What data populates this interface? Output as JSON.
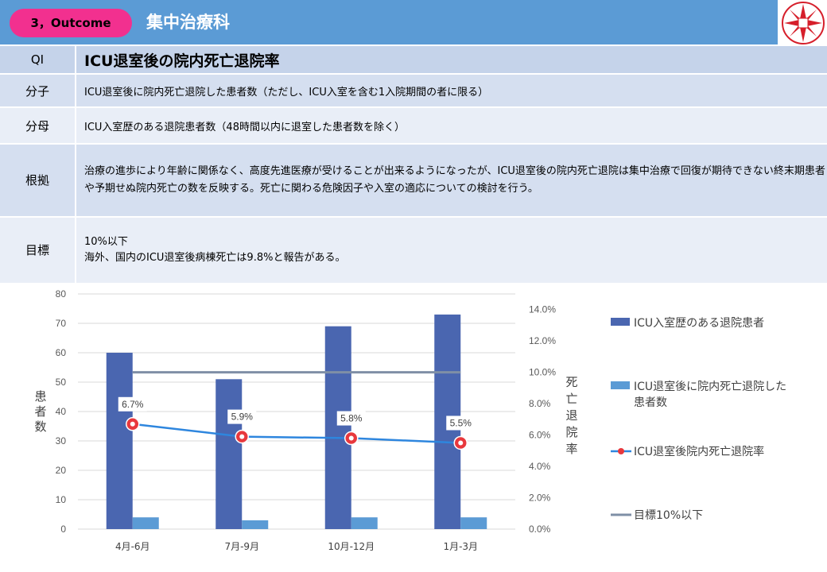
{
  "header": {
    "badge": "3，Outcome",
    "department": "集中治療科"
  },
  "table": {
    "rows": [
      {
        "key": "QI",
        "value": "ICU退室後の院内死亡退院率"
      },
      {
        "key": "分子",
        "value": "ICU退室後に院内死亡退院した患者数（ただし、ICU入室を含む1入院期間の者に限る）"
      },
      {
        "key": "分母",
        "value": "ICU入室歴のある退院患者数（48時間以内に退室した患者数を除く）"
      },
      {
        "key": "根拠",
        "value": "治療の進歩により年齢に関係なく、高度先進医療が受けることが出来るようになったが、ICU退室後の院内死亡退院は集中治療で回復が期待できない終末期患者や予期せぬ院内死亡の数を反映する。死亡に関わる危険因子や入室の適応についての検討を行う。"
      },
      {
        "key": "目標",
        "value_line1": "10%以下",
        "value_line2": "海外、国内のICU退室後病棟死亡は9.8%と報告がある。"
      }
    ]
  },
  "chart_data": {
    "type": "bar",
    "categories": [
      "4月-6月",
      "7月-9月",
      "10月-12月",
      "1月-3月"
    ],
    "series": [
      {
        "name": "ICU入室歴のある退院患者",
        "kind": "bar",
        "axis": "left",
        "color": "#4a66b0",
        "values": [
          60,
          51,
          69,
          73
        ]
      },
      {
        "name": "ICU退室後に院内死亡退院した患者数",
        "kind": "bar",
        "axis": "left",
        "color": "#5b9bd5",
        "values": [
          4,
          3,
          4,
          4
        ]
      },
      {
        "name": "ICU退室後院内死亡退院率",
        "kind": "line",
        "axis": "right",
        "color": "#2e86de",
        "values": [
          6.7,
          5.9,
          5.8,
          5.5
        ],
        "labels": [
          "6.7%",
          "5.9%",
          "5.8%",
          "5.5%"
        ]
      },
      {
        "name": "目標10%以下",
        "kind": "line",
        "axis": "right",
        "color": "#7f8fa6",
        "values": [
          10,
          10,
          10,
          10
        ]
      }
    ],
    "ylabel": "患者数",
    "y2label": "死亡退院率",
    "ylim": [
      0,
      80
    ],
    "yticks": [
      "0",
      "10",
      "20",
      "30",
      "40",
      "50",
      "60",
      "70",
      "80"
    ],
    "y2lim": [
      0,
      15
    ],
    "y2ticks": [
      "0.0%",
      "2.0%",
      "4.0%",
      "6.0%",
      "8.0%",
      "10.0%",
      "12.0%",
      "14.0%"
    ],
    "grid": true,
    "legend_position": "right"
  }
}
